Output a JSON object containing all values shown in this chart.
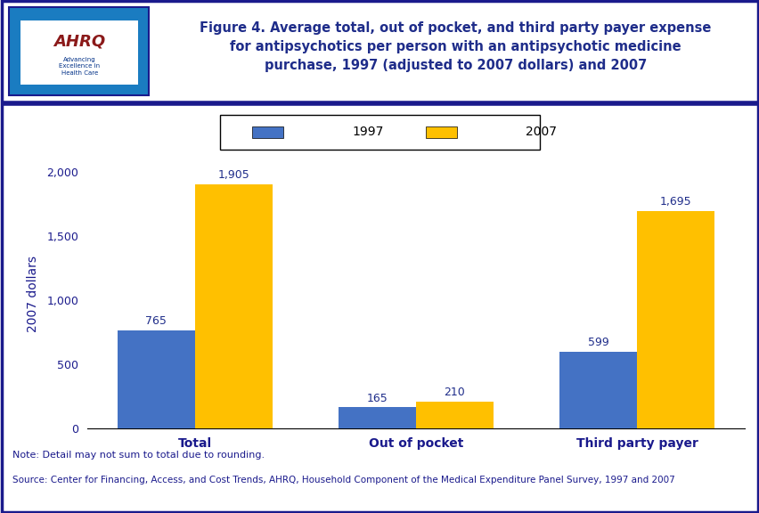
{
  "categories": [
    "Total",
    "Out of pocket",
    "Third party payer"
  ],
  "values_1997": [
    765,
    165,
    599
  ],
  "values_2007": [
    1905,
    210,
    1695
  ],
  "color_1997": "#4472C4",
  "color_2007": "#FFC000",
  "ylabel": "2007 dollars",
  "ylim": [
    0,
    2100
  ],
  "yticks": [
    0,
    500,
    1000,
    1500,
    2000
  ],
  "legend_labels": [
    "1997",
    "2007"
  ],
  "bar_width": 0.35,
  "title_line1": "Figure 4. Average total, out of pocket, and third party payer expense",
  "title_line2": "for antipsychotics per person with an antipsychotic medicine",
  "title_line3": "purchase, 1997 (adjusted to 2007 dollars) and 2007",
  "note_text": "Note: Detail may not sum to total due to rounding.",
  "source_text": "Source: Center for Financing, Access, and Cost Trends, AHRQ, Household Component of the Medical Expenditure Panel Survey, 1997 and 2007",
  "title_color": "#1F2D8A",
  "border_color": "#1A1A8C",
  "text_color": "#1A1A8C",
  "fig_bg_color": "#FFFFFF",
  "logo_bg_color": "#1A7CC1",
  "ahrq_text_color": "#8B0000",
  "ahrq_sub_color": "#003087"
}
